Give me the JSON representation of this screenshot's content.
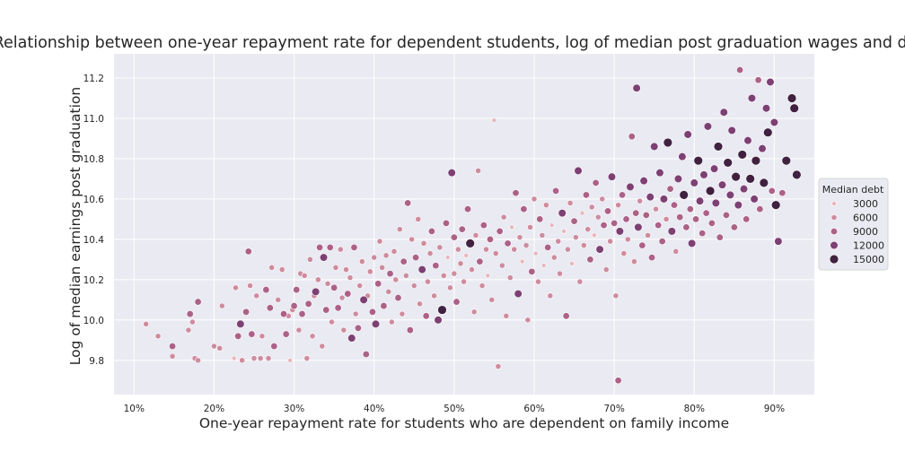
{
  "chart_data": {
    "type": "scatter",
    "title": "Relationship between one-year repayment rate for dependent students, log of median post graduation wages and debt",
    "xlabel": "One-year repayment rate for students who are dependent on family income",
    "ylabel": "Log of median earnings post graduation",
    "xlim": [
      0.075,
      0.95
    ],
    "ylim": [
      9.63,
      11.32
    ],
    "x_ticks": [
      0.1,
      0.2,
      0.3,
      0.4,
      0.5,
      0.6,
      0.7,
      0.8,
      0.9
    ],
    "x_tick_labels": [
      "10%",
      "20%",
      "30%",
      "40%",
      "50%",
      "60%",
      "70%",
      "80%",
      "90%"
    ],
    "y_ticks": [
      9.8,
      10.0,
      10.2,
      10.4,
      10.6,
      10.8,
      11.0,
      11.2
    ],
    "y_tick_labels": [
      "9.8",
      "10.0",
      "10.2",
      "10.4",
      "10.6",
      "10.8",
      "11.0",
      "11.2"
    ],
    "grid": true,
    "background": "#eaeaf2",
    "hue_variable": "Median debt",
    "size_variable": "Median debt",
    "legend": {
      "title": "Median debt",
      "position": "right-outside",
      "entries": [
        {
          "label": "3000",
          "value": 3000,
          "color": "#e8b6bc"
        },
        {
          "label": "6000",
          "value": 6000,
          "color": "#ce8c9e"
        },
        {
          "label": "9000",
          "value": 9000,
          "color": "#ac6187"
        },
        {
          "label": "12000",
          "value": 12000,
          "color": "#7d4073"
        },
        {
          "label": "15000",
          "value": 15000,
          "color": "#40213f"
        }
      ]
    },
    "points": [
      [
        0.115,
        9.98,
        6000
      ],
      [
        0.13,
        9.92,
        6000
      ],
      [
        0.148,
        9.82,
        6000
      ],
      [
        0.148,
        9.87,
        9000
      ],
      [
        0.168,
        9.95,
        6000
      ],
      [
        0.17,
        10.03,
        9000
      ],
      [
        0.173,
        9.99,
        6000
      ],
      [
        0.176,
        9.81,
        6000
      ],
      [
        0.18,
        9.8,
        6000
      ],
      [
        0.18,
        10.09,
        9000
      ],
      [
        0.2,
        9.87,
        6000
      ],
      [
        0.207,
        9.86,
        6000
      ],
      [
        0.21,
        10.07,
        6000
      ],
      [
        0.225,
        9.81,
        3000
      ],
      [
        0.227,
        10.16,
        6000
      ],
      [
        0.23,
        9.92,
        9000
      ],
      [
        0.233,
        9.98,
        12000
      ],
      [
        0.235,
        9.8,
        6000
      ],
      [
        0.24,
        10.04,
        9000
      ],
      [
        0.243,
        10.34,
        9000
      ],
      [
        0.245,
        10.17,
        6000
      ],
      [
        0.247,
        9.93,
        9000
      ],
      [
        0.25,
        9.81,
        6000
      ],
      [
        0.253,
        10.12,
        6000
      ],
      [
        0.258,
        9.81,
        6000
      ],
      [
        0.26,
        9.92,
        6000
      ],
      [
        0.265,
        10.15,
        9000
      ],
      [
        0.268,
        9.81,
        6000
      ],
      [
        0.27,
        10.06,
        9000
      ],
      [
        0.272,
        10.26,
        6000
      ],
      [
        0.275,
        9.87,
        9000
      ],
      [
        0.28,
        10.1,
        6000
      ],
      [
        0.285,
        10.25,
        6000
      ],
      [
        0.287,
        10.03,
        9000
      ],
      [
        0.29,
        9.93,
        9000
      ],
      [
        0.293,
        10.02,
        6000
      ],
      [
        0.295,
        9.8,
        3000
      ],
      [
        0.298,
        10.05,
        6000
      ],
      [
        0.3,
        10.07,
        9000
      ],
      [
        0.303,
        10.15,
        9000
      ],
      [
        0.306,
        9.95,
        6000
      ],
      [
        0.308,
        10.23,
        6000
      ],
      [
        0.31,
        10.03,
        9000
      ],
      [
        0.313,
        10.22,
        6000
      ],
      [
        0.316,
        9.81,
        6000
      ],
      [
        0.318,
        10.08,
        9000
      ],
      [
        0.32,
        10.3,
        6000
      ],
      [
        0.323,
        9.92,
        6000
      ],
      [
        0.325,
        10.12,
        6000
      ],
      [
        0.327,
        10.14,
        12000
      ],
      [
        0.33,
        10.2,
        6000
      ],
      [
        0.332,
        10.36,
        9000
      ],
      [
        0.335,
        9.87,
        6000
      ],
      [
        0.337,
        10.31,
        12000
      ],
      [
        0.34,
        10.05,
        9000
      ],
      [
        0.342,
        10.18,
        6000
      ],
      [
        0.345,
        10.36,
        9000
      ],
      [
        0.347,
        9.99,
        6000
      ],
      [
        0.35,
        10.16,
        9000
      ],
      [
        0.352,
        10.26,
        6000
      ],
      [
        0.355,
        10.06,
        9000
      ],
      [
        0.358,
        10.35,
        6000
      ],
      [
        0.36,
        10.11,
        6000
      ],
      [
        0.362,
        9.95,
        6000
      ],
      [
        0.365,
        10.25,
        6000
      ],
      [
        0.367,
        10.13,
        9000
      ],
      [
        0.37,
        10.21,
        6000
      ],
      [
        0.372,
        9.91,
        12000
      ],
      [
        0.375,
        10.36,
        9000
      ],
      [
        0.377,
        10.03,
        6000
      ],
      [
        0.38,
        9.96,
        9000
      ],
      [
        0.382,
        10.17,
        6000
      ],
      [
        0.385,
        10.29,
        6000
      ],
      [
        0.387,
        10.1,
        12000
      ],
      [
        0.39,
        9.83,
        9000
      ],
      [
        0.392,
        10.12,
        6000
      ],
      [
        0.395,
        10.24,
        6000
      ],
      [
        0.398,
        10.04,
        9000
      ],
      [
        0.4,
        10.31,
        6000
      ],
      [
        0.402,
        9.98,
        12000
      ],
      [
        0.405,
        10.18,
        9000
      ],
      [
        0.407,
        10.39,
        6000
      ],
      [
        0.41,
        10.26,
        6000
      ],
      [
        0.412,
        10.07,
        9000
      ],
      [
        0.415,
        10.32,
        6000
      ],
      [
        0.418,
        10.14,
        6000
      ],
      [
        0.42,
        10.23,
        9000
      ],
      [
        0.422,
        9.99,
        6000
      ],
      [
        0.425,
        10.34,
        6000
      ],
      [
        0.427,
        10.2,
        6000
      ],
      [
        0.43,
        10.11,
        9000
      ],
      [
        0.432,
        10.45,
        6000
      ],
      [
        0.435,
        10.03,
        6000
      ],
      [
        0.437,
        10.29,
        9000
      ],
      [
        0.44,
        10.22,
        6000
      ],
      [
        0.442,
        10.58,
        9000
      ],
      [
        0.445,
        9.95,
        9000
      ],
      [
        0.447,
        10.4,
        6000
      ],
      [
        0.45,
        10.17,
        6000
      ],
      [
        0.452,
        10.31,
        9000
      ],
      [
        0.455,
        10.5,
        6000
      ],
      [
        0.457,
        10.08,
        6000
      ],
      [
        0.46,
        10.25,
        12000
      ],
      [
        0.462,
        10.38,
        6000
      ],
      [
        0.465,
        10.02,
        9000
      ],
      [
        0.467,
        10.19,
        6000
      ],
      [
        0.47,
        10.33,
        6000
      ],
      [
        0.472,
        10.44,
        9000
      ],
      [
        0.475,
        10.12,
        6000
      ],
      [
        0.477,
        10.27,
        9000
      ],
      [
        0.48,
        10.0,
        12000
      ],
      [
        0.482,
        10.36,
        6000
      ],
      [
        0.485,
        10.05,
        15000
      ],
      [
        0.487,
        10.22,
        6000
      ],
      [
        0.49,
        10.48,
        9000
      ],
      [
        0.492,
        10.31,
        3000
      ],
      [
        0.495,
        10.16,
        6000
      ],
      [
        0.497,
        10.73,
        12000
      ],
      [
        0.5,
        10.41,
        9000
      ],
      [
        0.5,
        10.23,
        6000
      ],
      [
        0.503,
        10.09,
        9000
      ],
      [
        0.505,
        10.35,
        6000
      ],
      [
        0.508,
        10.28,
        6000
      ],
      [
        0.51,
        10.45,
        9000
      ],
      [
        0.512,
        10.19,
        6000
      ],
      [
        0.515,
        10.32,
        3000
      ],
      [
        0.517,
        10.55,
        9000
      ],
      [
        0.52,
        10.38,
        15000
      ],
      [
        0.522,
        10.25,
        6000
      ],
      [
        0.525,
        10.04,
        6000
      ],
      [
        0.527,
        10.42,
        6000
      ],
      [
        0.53,
        10.74,
        6000
      ],
      [
        0.532,
        10.29,
        9000
      ],
      [
        0.535,
        10.17,
        6000
      ],
      [
        0.537,
        10.47,
        9000
      ],
      [
        0.54,
        10.35,
        6000
      ],
      [
        0.542,
        10.22,
        3000
      ],
      [
        0.545,
        10.4,
        9000
      ],
      [
        0.547,
        10.1,
        6000
      ],
      [
        0.55,
        10.99,
        3000
      ],
      [
        0.552,
        10.33,
        6000
      ],
      [
        0.555,
        9.77,
        6000
      ],
      [
        0.557,
        10.44,
        9000
      ],
      [
        0.56,
        10.27,
        6000
      ],
      [
        0.562,
        10.51,
        6000
      ],
      [
        0.565,
        10.02,
        6000
      ],
      [
        0.567,
        10.38,
        9000
      ],
      [
        0.57,
        10.21,
        6000
      ],
      [
        0.572,
        10.46,
        3000
      ],
      [
        0.575,
        10.35,
        6000
      ],
      [
        0.577,
        10.63,
        9000
      ],
      [
        0.58,
        10.13,
        12000
      ],
      [
        0.582,
        10.41,
        6000
      ],
      [
        0.585,
        10.29,
        3000
      ],
      [
        0.587,
        10.55,
        9000
      ],
      [
        0.59,
        10.37,
        6000
      ],
      [
        0.592,
        10.0,
        6000
      ],
      [
        0.595,
        10.46,
        6000
      ],
      [
        0.597,
        10.24,
        9000
      ],
      [
        0.6,
        10.6,
        6000
      ],
      [
        0.602,
        10.33,
        3000
      ],
      [
        0.605,
        10.19,
        6000
      ],
      [
        0.607,
        10.5,
        9000
      ],
      [
        0.61,
        10.42,
        6000
      ],
      [
        0.612,
        10.27,
        3000
      ],
      [
        0.615,
        10.57,
        6000
      ],
      [
        0.617,
        10.36,
        9000
      ],
      [
        0.62,
        10.12,
        6000
      ],
      [
        0.622,
        10.47,
        3000
      ],
      [
        0.625,
        10.31,
        6000
      ],
      [
        0.627,
        10.64,
        9000
      ],
      [
        0.63,
        10.39,
        6000
      ],
      [
        0.632,
        10.23,
        6000
      ],
      [
        0.635,
        10.53,
        12000
      ],
      [
        0.637,
        10.44,
        3000
      ],
      [
        0.64,
        10.02,
        9000
      ],
      [
        0.642,
        10.35,
        6000
      ],
      [
        0.645,
        10.58,
        6000
      ],
      [
        0.647,
        10.28,
        3000
      ],
      [
        0.65,
        10.49,
        9000
      ],
      [
        0.652,
        10.41,
        6000
      ],
      [
        0.655,
        10.74,
        12000
      ],
      [
        0.657,
        10.19,
        6000
      ],
      [
        0.66,
        10.53,
        3000
      ],
      [
        0.662,
        10.37,
        6000
      ],
      [
        0.665,
        10.62,
        9000
      ],
      [
        0.667,
        10.45,
        6000
      ],
      [
        0.67,
        10.3,
        9000
      ],
      [
        0.672,
        10.56,
        6000
      ],
      [
        0.675,
        10.42,
        3000
      ],
      [
        0.677,
        10.68,
        9000
      ],
      [
        0.68,
        10.51,
        6000
      ],
      [
        0.682,
        10.35,
        12000
      ],
      [
        0.685,
        10.6,
        6000
      ],
      [
        0.687,
        10.47,
        9000
      ],
      [
        0.69,
        10.25,
        6000
      ],
      [
        0.692,
        10.54,
        9000
      ],
      [
        0.695,
        10.39,
        6000
      ],
      [
        0.697,
        10.71,
        12000
      ],
      [
        0.7,
        10.48,
        9000
      ],
      [
        0.702,
        10.12,
        6000
      ],
      [
        0.705,
        9.7,
        9000
      ],
      [
        0.705,
        10.57,
        6000
      ],
      [
        0.707,
        10.44,
        12000
      ],
      [
        0.71,
        10.62,
        9000
      ],
      [
        0.712,
        10.33,
        6000
      ],
      [
        0.715,
        10.5,
        9000
      ],
      [
        0.717,
        10.4,
        6000
      ],
      [
        0.72,
        10.66,
        12000
      ],
      [
        0.722,
        10.91,
        9000
      ],
      [
        0.725,
        10.29,
        6000
      ],
      [
        0.727,
        10.53,
        9000
      ],
      [
        0.728,
        11.15,
        12000
      ],
      [
        0.73,
        10.46,
        12000
      ],
      [
        0.732,
        10.59,
        6000
      ],
      [
        0.735,
        10.37,
        9000
      ],
      [
        0.737,
        10.69,
        12000
      ],
      [
        0.74,
        10.52,
        9000
      ],
      [
        0.742,
        10.42,
        6000
      ],
      [
        0.745,
        10.61,
        12000
      ],
      [
        0.747,
        10.31,
        9000
      ],
      [
        0.75,
        10.86,
        12000
      ],
      [
        0.752,
        10.55,
        6000
      ],
      [
        0.755,
        10.47,
        9000
      ],
      [
        0.757,
        10.73,
        12000
      ],
      [
        0.76,
        10.39,
        9000
      ],
      [
        0.762,
        10.6,
        12000
      ],
      [
        0.765,
        10.5,
        6000
      ],
      [
        0.767,
        10.88,
        15000
      ],
      [
        0.77,
        10.65,
        9000
      ],
      [
        0.772,
        10.44,
        12000
      ],
      [
        0.775,
        10.57,
        9000
      ],
      [
        0.777,
        10.34,
        6000
      ],
      [
        0.78,
        10.7,
        12000
      ],
      [
        0.782,
        10.51,
        9000
      ],
      [
        0.785,
        10.81,
        12000
      ],
      [
        0.787,
        10.62,
        15000
      ],
      [
        0.79,
        10.46,
        9000
      ],
      [
        0.792,
        10.92,
        12000
      ],
      [
        0.795,
        10.55,
        9000
      ],
      [
        0.797,
        10.38,
        12000
      ],
      [
        0.8,
        10.68,
        12000
      ],
      [
        0.802,
        10.5,
        9000
      ],
      [
        0.805,
        10.79,
        15000
      ],
      [
        0.807,
        10.59,
        12000
      ],
      [
        0.81,
        10.43,
        9000
      ],
      [
        0.812,
        10.72,
        12000
      ],
      [
        0.815,
        10.53,
        9000
      ],
      [
        0.817,
        10.96,
        12000
      ],
      [
        0.82,
        10.64,
        15000
      ],
      [
        0.822,
        10.48,
        9000
      ],
      [
        0.825,
        10.75,
        12000
      ],
      [
        0.827,
        10.58,
        12000
      ],
      [
        0.83,
        10.86,
        15000
      ],
      [
        0.832,
        10.41,
        9000
      ],
      [
        0.835,
        10.67,
        12000
      ],
      [
        0.837,
        11.03,
        12000
      ],
      [
        0.84,
        10.52,
        9000
      ],
      [
        0.842,
        10.78,
        15000
      ],
      [
        0.845,
        10.62,
        12000
      ],
      [
        0.847,
        10.94,
        12000
      ],
      [
        0.85,
        10.46,
        9000
      ],
      [
        0.852,
        10.71,
        15000
      ],
      [
        0.855,
        10.57,
        12000
      ],
      [
        0.857,
        11.24,
        9000
      ],
      [
        0.86,
        10.82,
        15000
      ],
      [
        0.862,
        10.65,
        12000
      ],
      [
        0.865,
        10.5,
        9000
      ],
      [
        0.867,
        10.89,
        12000
      ],
      [
        0.87,
        10.7,
        15000
      ],
      [
        0.872,
        11.1,
        12000
      ],
      [
        0.875,
        10.6,
        12000
      ],
      [
        0.877,
        10.79,
        15000
      ],
      [
        0.88,
        11.19,
        9000
      ],
      [
        0.882,
        10.55,
        9000
      ],
      [
        0.885,
        10.85,
        12000
      ],
      [
        0.887,
        10.68,
        15000
      ],
      [
        0.89,
        11.05,
        12000
      ],
      [
        0.892,
        10.93,
        15000
      ],
      [
        0.895,
        11.18,
        12000
      ],
      [
        0.897,
        10.64,
        9000
      ],
      [
        0.9,
        10.98,
        12000
      ],
      [
        0.902,
        10.57,
        15000
      ],
      [
        0.905,
        10.39,
        12000
      ],
      [
        0.91,
        10.63,
        9000
      ],
      [
        0.915,
        10.79,
        15000
      ],
      [
        0.922,
        11.1,
        15000
      ],
      [
        0.925,
        11.05,
        15000
      ],
      [
        0.928,
        10.72,
        15000
      ]
    ]
  }
}
